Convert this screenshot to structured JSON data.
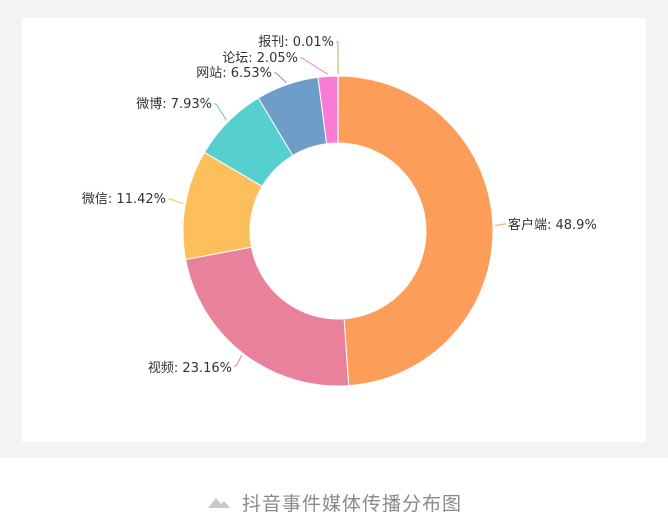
{
  "caption": {
    "text": "抖音事件媒体传播分布图",
    "icon": "image-caption-icon"
  },
  "chart_data": {
    "type": "pie",
    "variant": "donut",
    "title": "",
    "slices": [
      {
        "label": "客户端",
        "value": 48.9,
        "display": "客户端: 48.9%",
        "color": "#fd9d5a"
      },
      {
        "label": "视频",
        "value": 23.16,
        "display": "视频: 23.16%",
        "color": "#e9809c"
      },
      {
        "label": "微信",
        "value": 11.42,
        "display": "微信: 11.42%",
        "color": "#fdbf5b"
      },
      {
        "label": "微博",
        "value": 7.93,
        "display": "微博: 7.93%",
        "color": "#55d0cf"
      },
      {
        "label": "网站",
        "value": 6.53,
        "display": "网站: 6.53%",
        "color": "#6e9ec7"
      },
      {
        "label": "论坛",
        "value": 2.05,
        "display": "论坛: 2.05%",
        "color": "#f87bd4"
      },
      {
        "label": "报刊",
        "value": 0.01,
        "display": "报刊: 0.01%",
        "color": "#8fc46a"
      }
    ],
    "start_angle_deg": 0,
    "direction": "clockwise"
  }
}
